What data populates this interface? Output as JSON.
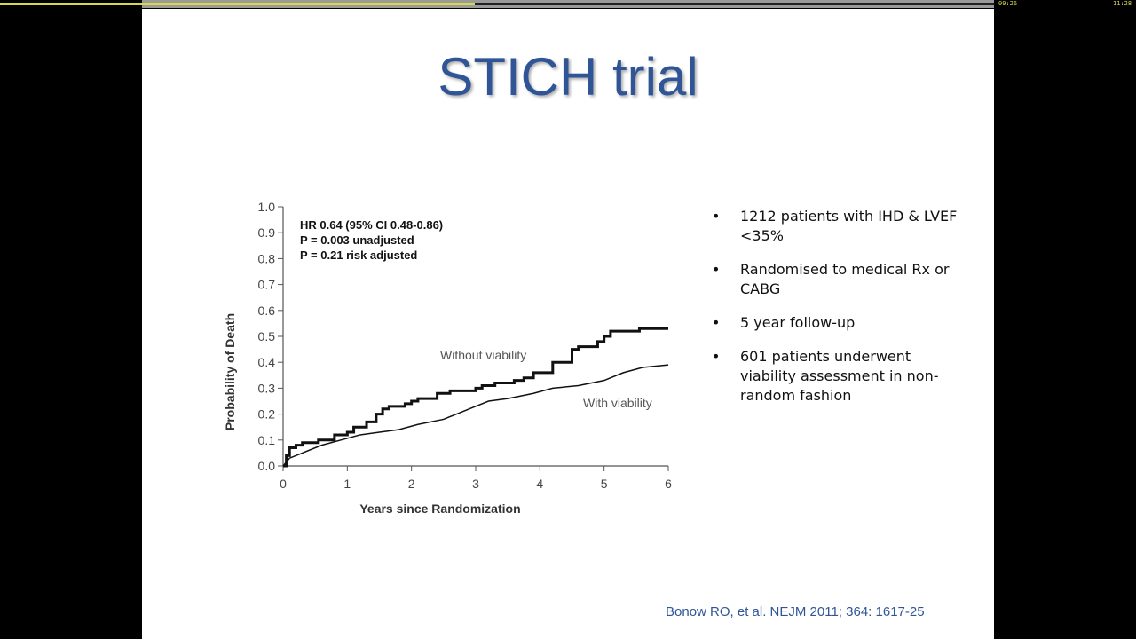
{
  "player": {
    "progress_fraction": 0.418,
    "elapsed": "09:26",
    "total": "11:28",
    "accent": "#d6d84a"
  },
  "slide": {
    "title": "STICH trial",
    "bullets": [
      "1212 patients with IHD & LVEF <35%",
      "Randomised to medical Rx or CABG",
      "5 year follow-up",
      "601 patients underwent viability assessment in non-random fashion"
    ],
    "bullet_glyph": "•",
    "citation": "Bonow RO, et al.  NEJM 2011; 364: 1617-25"
  },
  "chart_data": {
    "type": "line",
    "xlabel": "Years since Randomization",
    "ylabel": "Probability of Death",
    "xlim": [
      0,
      6
    ],
    "ylim": [
      0,
      1.0
    ],
    "xticks": [
      "0",
      "1",
      "2",
      "3",
      "4",
      "5",
      "6"
    ],
    "yticks": [
      "0.0",
      "0.1",
      "0.2",
      "0.3",
      "0.4",
      "0.5",
      "0.6",
      "0.7",
      "0.8",
      "0.9",
      "1.0"
    ],
    "annotation": [
      "HR 0.64 (95% CI 0.48-0.86)",
      "P = 0.003 unadjusted",
      "P = 0.21 risk adjusted"
    ],
    "series": [
      {
        "name": "Without viability",
        "step": true,
        "x": [
          0,
          0.05,
          0.1,
          0.2,
          0.3,
          0.55,
          0.8,
          1.0,
          1.1,
          1.3,
          1.45,
          1.55,
          1.65,
          1.9,
          2.0,
          2.1,
          2.4,
          2.6,
          3.0,
          3.1,
          3.3,
          3.6,
          3.75,
          3.9,
          4.2,
          4.5,
          4.6,
          4.9,
          5.0,
          5.1,
          5.55,
          6.0
        ],
        "y": [
          0,
          0.04,
          0.07,
          0.08,
          0.09,
          0.1,
          0.12,
          0.13,
          0.15,
          0.17,
          0.2,
          0.22,
          0.23,
          0.24,
          0.25,
          0.26,
          0.28,
          0.29,
          0.3,
          0.31,
          0.32,
          0.33,
          0.34,
          0.36,
          0.4,
          0.45,
          0.46,
          0.48,
          0.5,
          0.52,
          0.53,
          0.53
        ]
      },
      {
        "name": "With viability",
        "step": false,
        "x": [
          0,
          0.1,
          0.3,
          0.6,
          0.9,
          1.2,
          1.5,
          1.8,
          2.1,
          2.5,
          2.8,
          3.0,
          3.2,
          3.5,
          3.9,
          4.2,
          4.6,
          5.0,
          5.3,
          5.6,
          6.0
        ],
        "y": [
          0,
          0.03,
          0.05,
          0.08,
          0.1,
          0.12,
          0.13,
          0.14,
          0.16,
          0.18,
          0.21,
          0.23,
          0.25,
          0.26,
          0.28,
          0.3,
          0.31,
          0.33,
          0.36,
          0.38,
          0.39
        ]
      }
    ]
  }
}
